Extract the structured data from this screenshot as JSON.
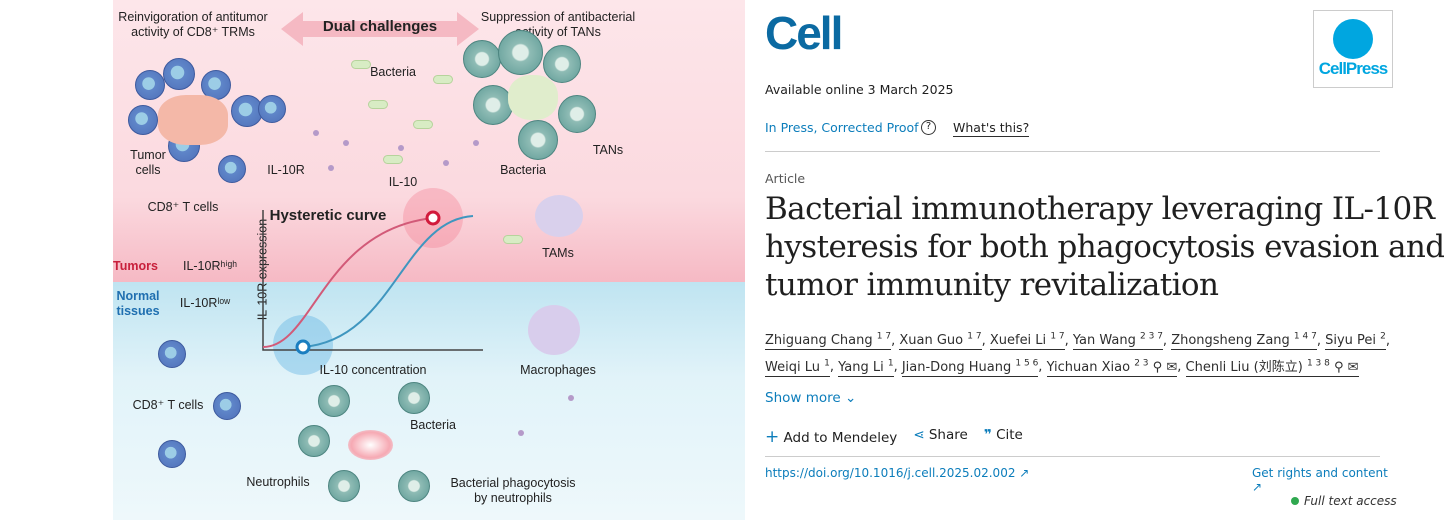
{
  "figure": {
    "dual_challenges": "Dual challenges",
    "left_heading": [
      "Reinvigoration of antitumor",
      "activity of CD8⁺ TRMs"
    ],
    "right_heading": [
      "Suppression of antibacterial",
      "activity of TANs"
    ],
    "bacteria": "Bacteria",
    "tumor_cells": [
      "Tumor",
      "cells"
    ],
    "il10r": "IL-10R",
    "il10": "IL-10",
    "cd8_t_cells": "CD8⁺ T cells",
    "tans": "TANs",
    "bacteria2": "Bacteria",
    "tams": "TAMs",
    "hysteretic_curve": "Hysteretic curve",
    "y_axis": "IL-10R expression",
    "x_axis": "IL-10 concentration",
    "tumors": "Tumors",
    "il10r_high": "IL-10Rʰⁱᵍʰ",
    "normal_tissues": [
      "Normal",
      "tissues"
    ],
    "il10r_low": "IL-10Rˡᵒʷ",
    "macrophages": "Macrophages",
    "cd8_t_cells2": "CD8⁺ T cells",
    "bacteria3": "Bacteria",
    "neutrophils": "Neutrophils",
    "phagocytosis": [
      "Bacterial phagocytosis",
      "by neutrophils"
    ]
  },
  "journal": {
    "logo": "Cell",
    "publisher_logo": "CellPress",
    "available": "Available online 3 March 2025",
    "status": "In Press, Corrected Proof",
    "whats_this": "What's this?"
  },
  "article": {
    "type": "Article",
    "title_lines": [
      "Bacterial immunotherapy leveraging IL-10R",
      "hysteresis for both phagocytosis evasion and",
      "tumor immunity revitalization"
    ]
  },
  "authors": [
    {
      "name": "Zhiguang Chang",
      "sup": "1 7"
    },
    {
      "name": "Xuan Guo",
      "sup": "1 7"
    },
    {
      "name": "Xuefei Li",
      "sup": "1 7"
    },
    {
      "name": "Yan Wang",
      "sup": "2 3 7"
    },
    {
      "name": "Zhongsheng Zang",
      "sup": "1 4 7"
    },
    {
      "name": "Siyu Pei",
      "sup": "2"
    },
    {
      "name": "Weiqi Lu",
      "sup": "1"
    },
    {
      "name": "Yang Li",
      "sup": "1"
    },
    {
      "name": "Jian-Dong Huang",
      "sup": "1 5 6"
    },
    {
      "name": "Yichuan Xiao",
      "sup": "2 3"
    },
    {
      "name": "Chenli Liu (刘陈立)",
      "sup": "1 3 8"
    }
  ],
  "actions": {
    "show_more": "Show more",
    "mendeley": "Add to Mendeley",
    "share": "Share",
    "cite": "Cite"
  },
  "footer": {
    "doi": "https://doi.org/10.1016/j.cell.2025.02.002",
    "rights": "Get rights and content",
    "access": "Full text access"
  },
  "colors": {
    "brand": "#0c7dbb",
    "access": "#2fa84f"
  }
}
